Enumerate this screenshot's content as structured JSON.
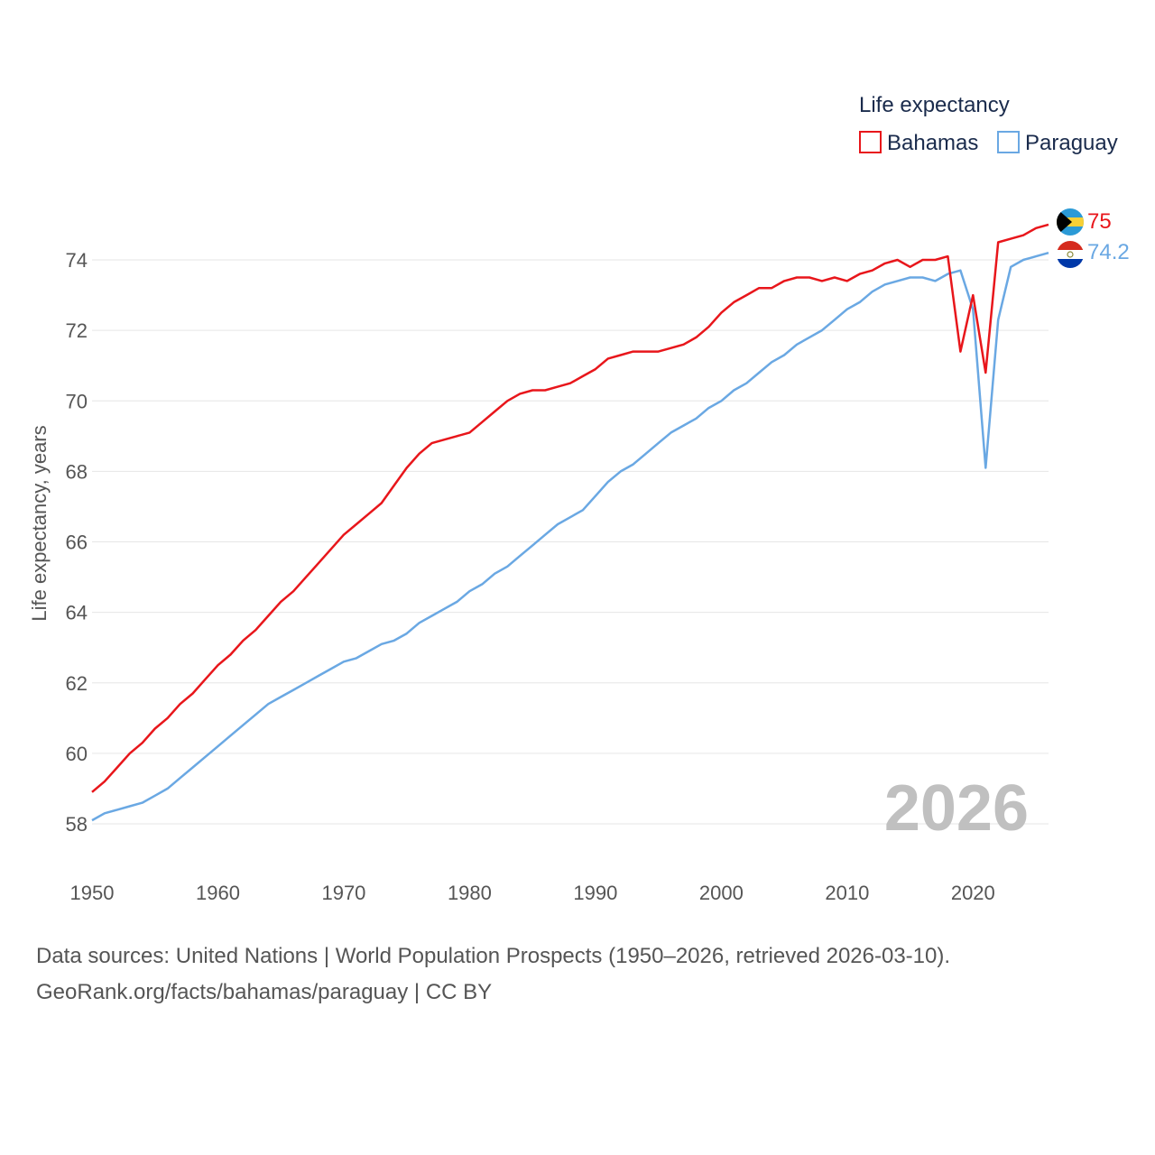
{
  "chart_data": {
    "type": "line",
    "legend_title": "Life expectancy",
    "ylabel": "Life expectancy, years",
    "xlim": [
      1950,
      2026
    ],
    "ylim": [
      57,
      75.5
    ],
    "x_ticks": [
      1950,
      1960,
      1970,
      1980,
      1990,
      2000,
      2010,
      2020
    ],
    "y_ticks": [
      58,
      60,
      62,
      64,
      66,
      68,
      70,
      72,
      74
    ],
    "year_watermark": "2026",
    "x": [
      1950,
      1951,
      1952,
      1953,
      1954,
      1955,
      1956,
      1957,
      1958,
      1959,
      1960,
      1961,
      1962,
      1963,
      1964,
      1965,
      1966,
      1967,
      1968,
      1969,
      1970,
      1971,
      1972,
      1973,
      1974,
      1975,
      1976,
      1977,
      1978,
      1979,
      1980,
      1981,
      1982,
      1983,
      1984,
      1985,
      1986,
      1987,
      1988,
      1989,
      1990,
      1991,
      1992,
      1993,
      1994,
      1995,
      1996,
      1997,
      1998,
      1999,
      2000,
      2001,
      2002,
      2003,
      2004,
      2005,
      2006,
      2007,
      2008,
      2009,
      2010,
      2011,
      2012,
      2013,
      2014,
      2015,
      2016,
      2017,
      2018,
      2019,
      2020,
      2021,
      2022,
      2023,
      2024,
      2025,
      2026
    ],
    "series": [
      {
        "name": "Bahamas",
        "color": "#e8161b",
        "end_label": "75",
        "flag": "bahamas-flag-icon",
        "values": [
          58.9,
          59.2,
          59.6,
          60.0,
          60.3,
          60.7,
          61.0,
          61.4,
          61.7,
          62.1,
          62.5,
          62.8,
          63.2,
          63.5,
          63.9,
          64.3,
          64.6,
          65.0,
          65.4,
          65.8,
          66.2,
          66.5,
          66.8,
          67.1,
          67.6,
          68.1,
          68.5,
          68.8,
          68.9,
          69.0,
          69.1,
          69.4,
          69.7,
          70.0,
          70.2,
          70.3,
          70.3,
          70.4,
          70.5,
          70.7,
          70.9,
          71.2,
          71.3,
          71.4,
          71.4,
          71.4,
          71.5,
          71.6,
          71.8,
          72.1,
          72.5,
          72.8,
          73.0,
          73.2,
          73.2,
          73.4,
          73.5,
          73.5,
          73.4,
          73.5,
          73.4,
          73.6,
          73.7,
          73.9,
          74.0,
          73.8,
          74.0,
          74.0,
          74.1,
          71.4,
          73.0,
          70.8,
          74.5,
          74.6,
          74.7,
          74.9,
          75.0
        ]
      },
      {
        "name": "Paraguay",
        "color": "#6aa8e3",
        "end_label": "74.2",
        "flag": "paraguay-flag-icon",
        "values": [
          58.1,
          58.3,
          58.4,
          58.5,
          58.6,
          58.8,
          59.0,
          59.3,
          59.6,
          59.9,
          60.2,
          60.5,
          60.8,
          61.1,
          61.4,
          61.6,
          61.8,
          62.0,
          62.2,
          62.4,
          62.6,
          62.7,
          62.9,
          63.1,
          63.2,
          63.4,
          63.7,
          63.9,
          64.1,
          64.3,
          64.6,
          64.8,
          65.1,
          65.3,
          65.6,
          65.9,
          66.2,
          66.5,
          66.7,
          66.9,
          67.3,
          67.7,
          68.0,
          68.2,
          68.5,
          68.8,
          69.1,
          69.3,
          69.5,
          69.8,
          70.0,
          70.3,
          70.5,
          70.8,
          71.1,
          71.3,
          71.6,
          71.8,
          72.0,
          72.3,
          72.6,
          72.8,
          73.1,
          73.3,
          73.4,
          73.5,
          73.5,
          73.4,
          73.6,
          73.7,
          72.6,
          68.1,
          72.3,
          73.8,
          74.0,
          74.1,
          74.2
        ]
      }
    ]
  },
  "source": {
    "line1": "Data sources: United Nations | World Population Prospects (1950–2026, retrieved 2026-03-10).",
    "line2": "GeoRank.org/facts/bahamas/paraguay | CC BY"
  }
}
